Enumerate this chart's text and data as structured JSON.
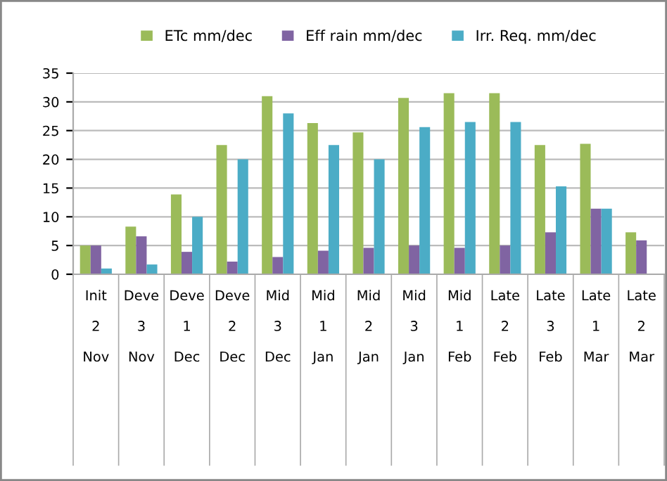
{
  "chart_data": {
    "type": "bar",
    "categories": [
      "Init\n\n2\n\nNov",
      "Deve\n\n3\n\nNov",
      "Deve\n\n1\n\nDec",
      "Deve\n\n2\n\nDec",
      "Mid\n\n3\n\nDec",
      "Mid\n\n1\n\nJan",
      "Mid\n\n2\n\nJan",
      "Mid\n\n3\n\nJan",
      "Mid\n\n1\n\nFeb",
      "Late\n\n2\n\nFeb",
      "Late\n\n3\n\nFeb",
      "Late\n\n1\n\nMar",
      "Late\n\n2\n\nMar"
    ],
    "series": [
      {
        "name": "ETc mm/dec",
        "color": "#9bbb59",
        "values": [
          5,
          8.3,
          13.9,
          22.5,
          31,
          26.3,
          24.7,
          30.7,
          31.5,
          31.5,
          22.5,
          22.7,
          7.3
        ]
      },
      {
        "name": "Eff rain mm/dec",
        "color": "#8064a2",
        "values": [
          5,
          6.6,
          3.9,
          2.2,
          3,
          4.1,
          4.6,
          5,
          4.6,
          5,
          7.3,
          11.4,
          5.9
        ]
      },
      {
        "name": "Irr. Req. mm/dec",
        "color": "#4bacc6",
        "values": [
          1,
          1.7,
          10,
          20,
          28,
          22.5,
          20,
          25.6,
          26.5,
          26.5,
          15.3,
          11.4,
          0
        ]
      }
    ],
    "ylim": [
      0,
      35
    ],
    "yticks": [
      0,
      5,
      10,
      15,
      20,
      25,
      30,
      35
    ],
    "grid": "y",
    "legend": "top"
  }
}
